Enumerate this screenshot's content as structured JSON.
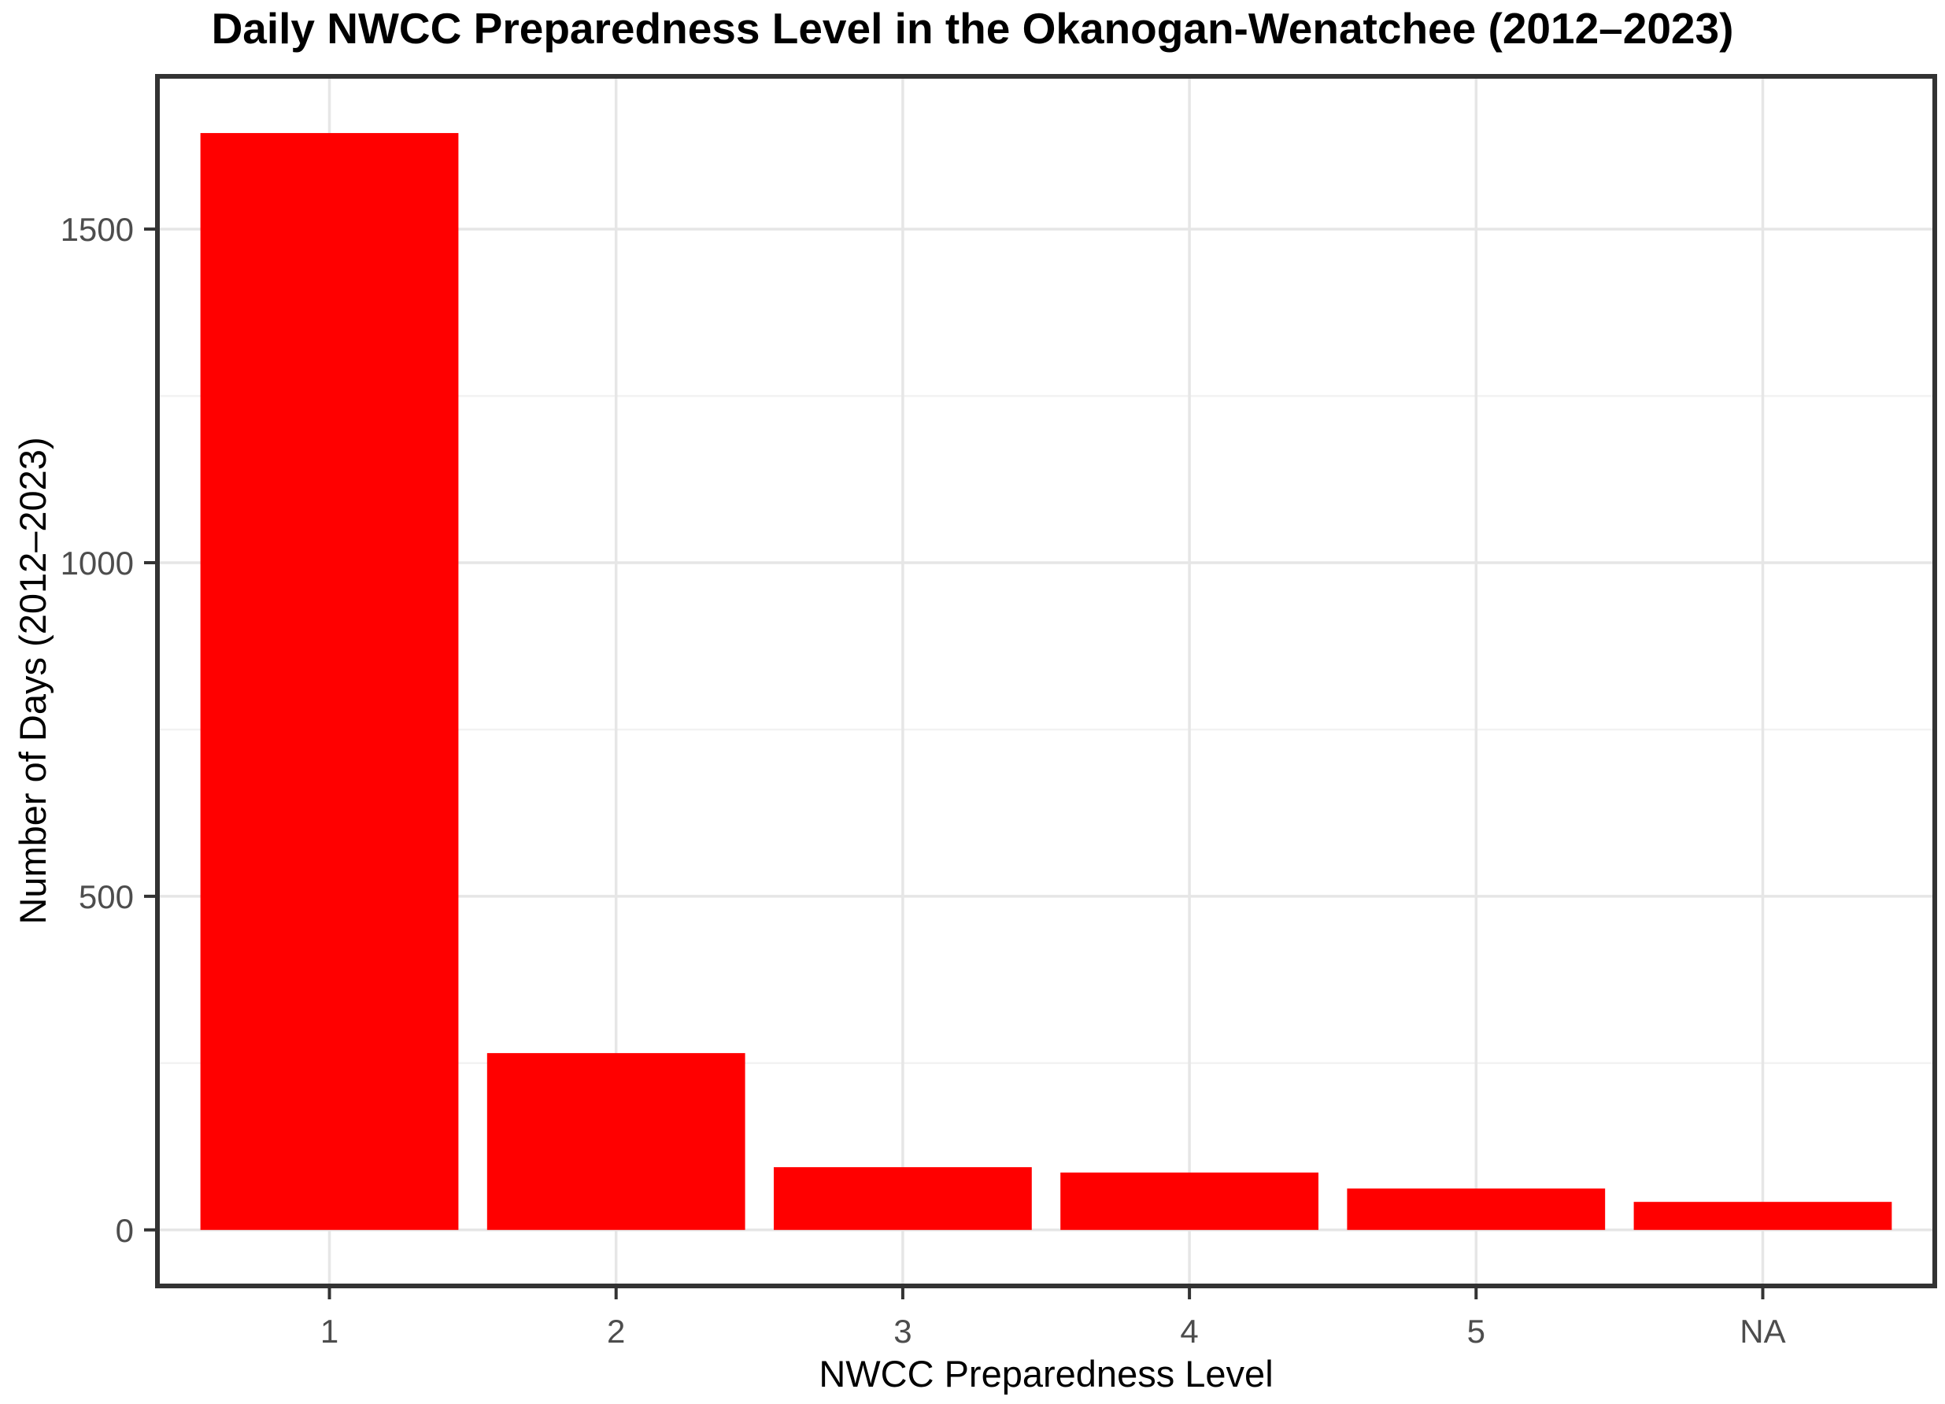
{
  "figure": {
    "title": "Daily NWCC Preparedness Level in the Okanogan-Wenatchee (2012–2023)"
  },
  "chart_data": {
    "type": "bar",
    "title": "Daily NWCC Preparedness Level in the Okanogan-Wenatchee (2012–2023)",
    "xlabel": "NWCC Preparedness Level",
    "ylabel": "Number of Days (2012–2023)",
    "categories": [
      "1",
      "2",
      "3",
      "4",
      "5",
      "NA"
    ],
    "values": [
      1644,
      265,
      94,
      86,
      62,
      42
    ],
    "yticks": [
      0,
      500,
      1000,
      1500
    ],
    "yticks_minor": [
      250,
      750,
      1250
    ],
    "ylim": [
      -84,
      1729
    ],
    "grid": "major-and-minor, light grey on white, vertical major at each category",
    "legend": "none",
    "bar_fill": "#ff0000",
    "theme": {
      "background": "#ffffff",
      "panel_background": "#ffffff",
      "panel_border": "#333333",
      "grid_major": "#e6e6e6",
      "grid_minor": "#f2f2f2",
      "tick_mark_color": "#333333",
      "tick_label_color": "#4d4d4d",
      "axis_title_color": "#000000",
      "title_color": "#000000"
    }
  }
}
